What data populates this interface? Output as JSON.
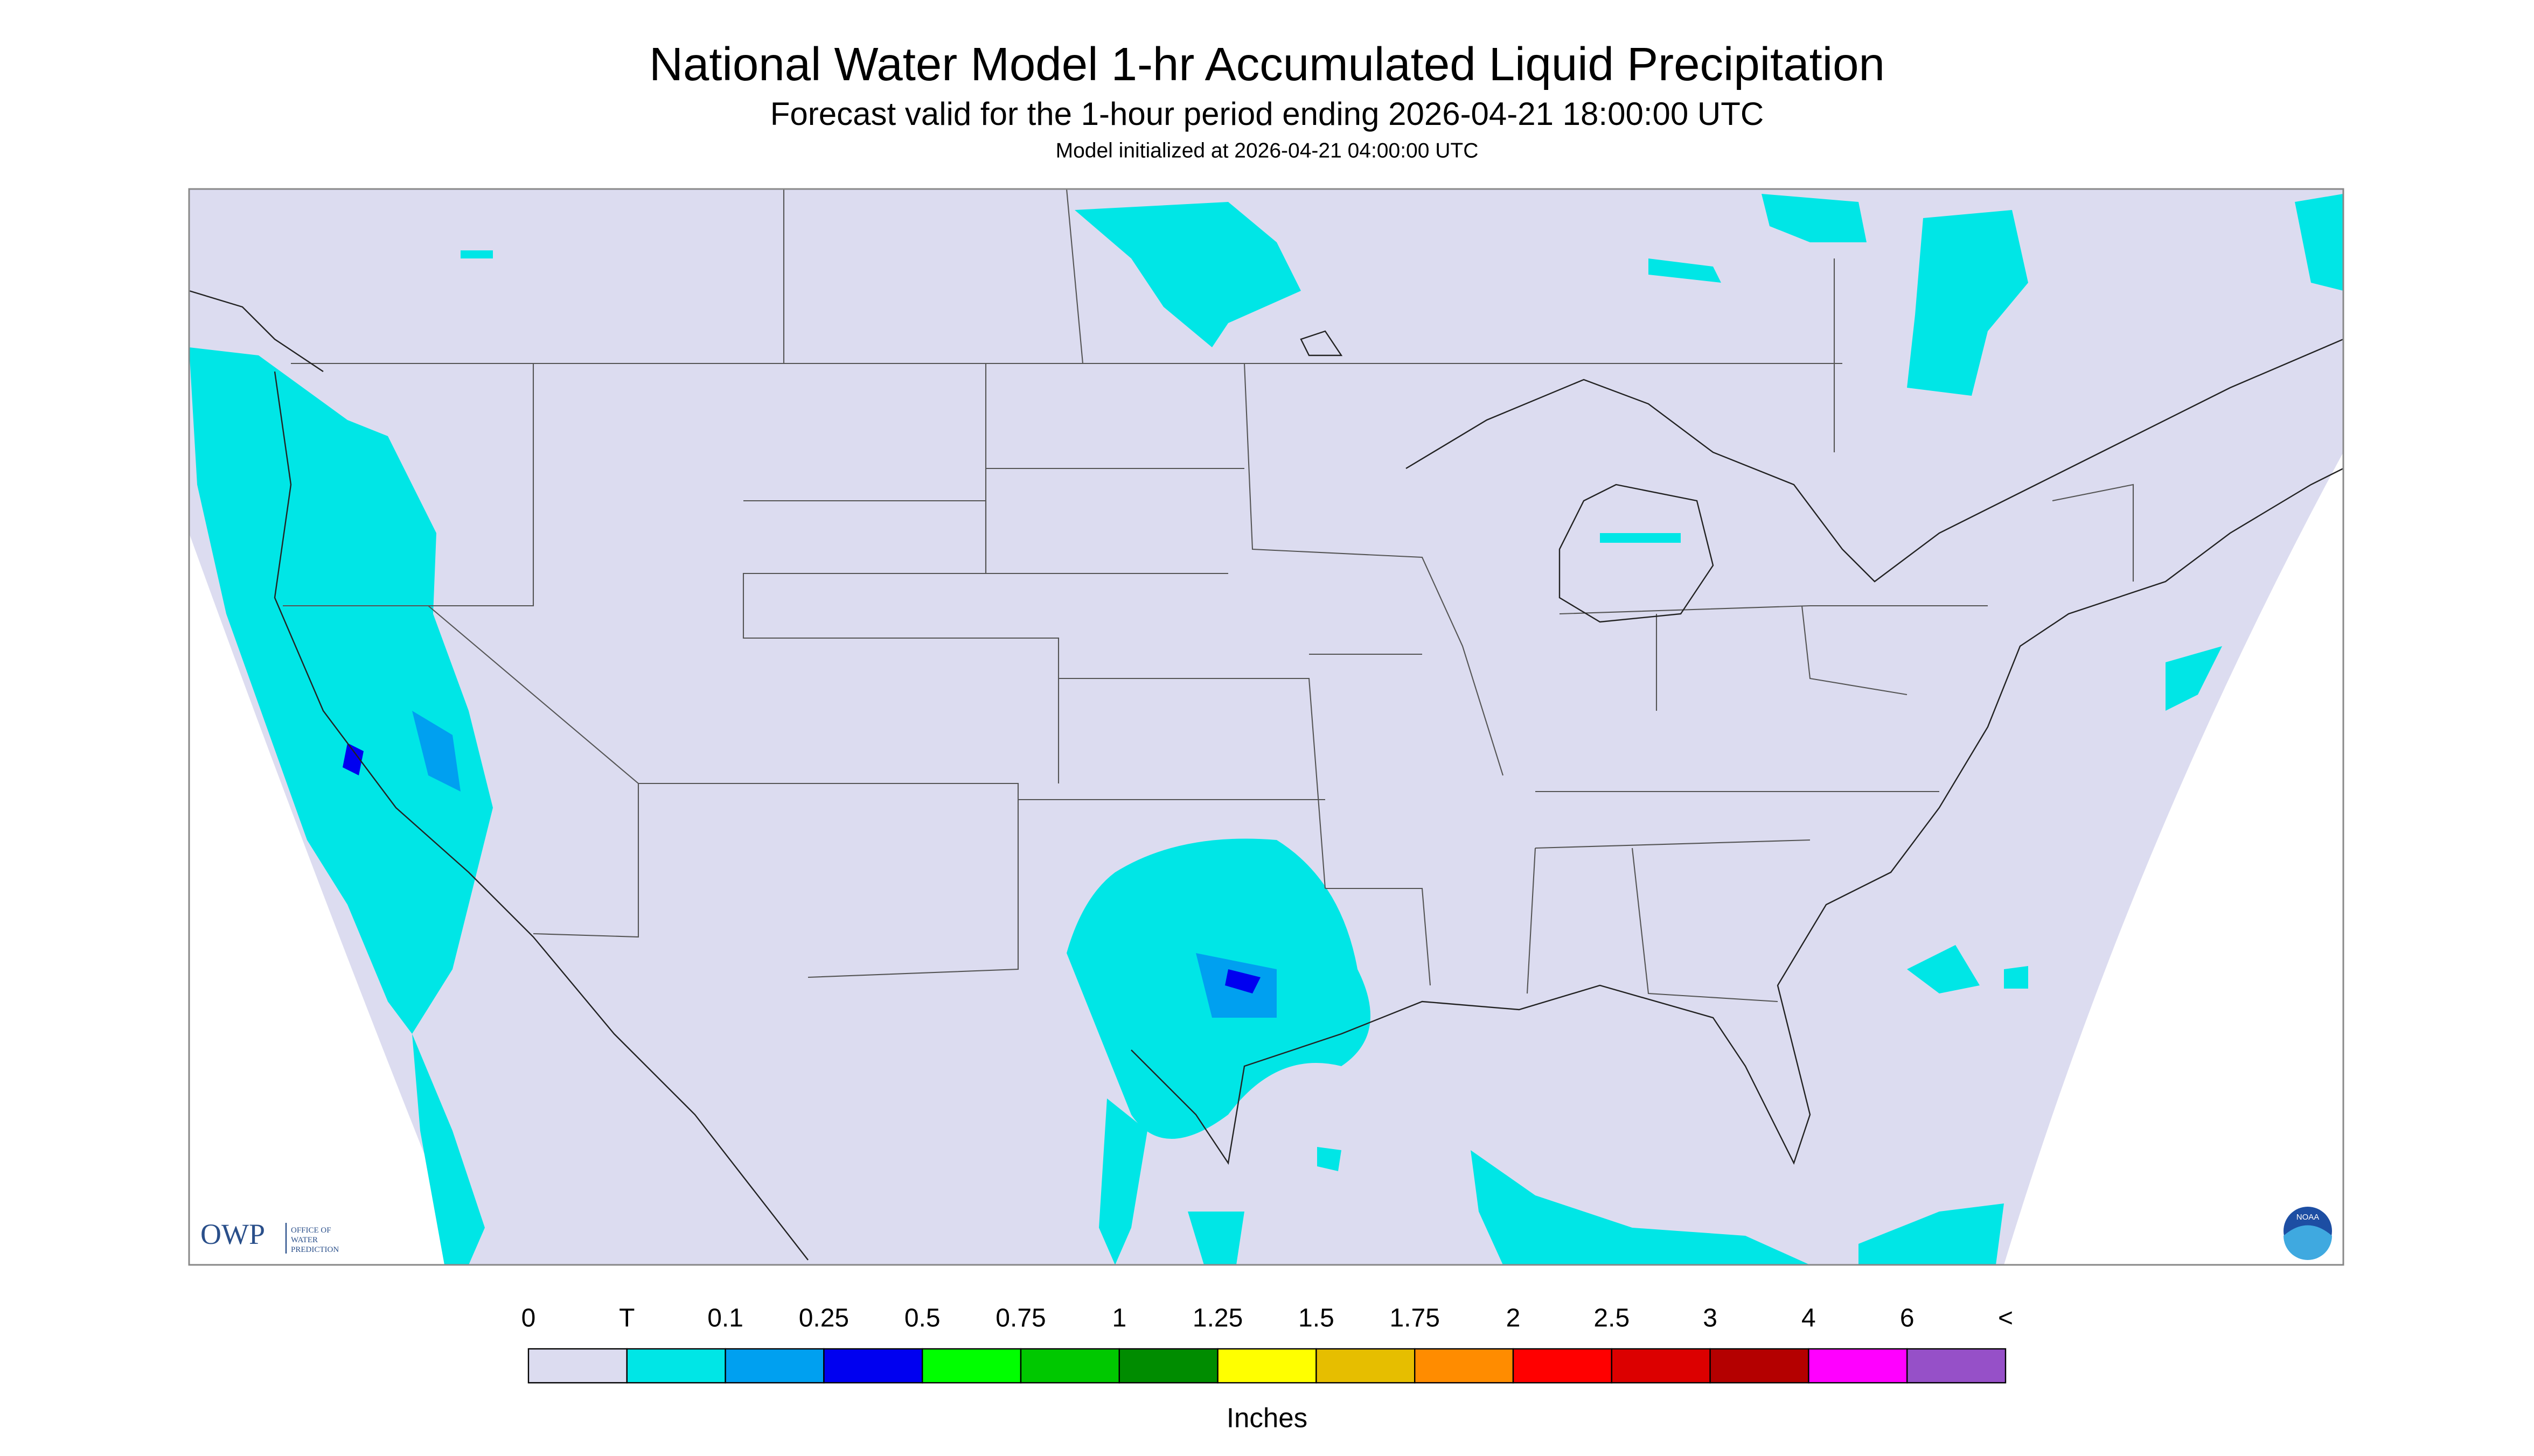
{
  "header": {
    "title": "National Water Model 1-hr Accumulated Liquid Precipitation",
    "subtitle": "Forecast valid for the 1-hour period ending 2026-04-21 18:00:00 UTC",
    "note": "Model initialized at 2026-04-21 04:00:00 UTC"
  },
  "logos": {
    "owp": "OWP",
    "owp_name": [
      "OFFICE OF",
      "WATER",
      "PREDICTION"
    ],
    "noaa": "NOAA"
  },
  "legend": {
    "labels": [
      "0",
      "T",
      "0.1",
      "0.25",
      "0.5",
      "0.75",
      "1",
      "1.25",
      "1.5",
      "1.75",
      "2",
      "2.5",
      "3",
      "4",
      "6",
      "<"
    ],
    "colors": [
      "#dcdcf0",
      "#00e6e6",
      "#00a0f0",
      "#0000f0",
      "#00ff00",
      "#00c800",
      "#008c00",
      "#ffff00",
      "#e6be00",
      "#ff8c00",
      "#ff0000",
      "#dc0000",
      "#b40000",
      "#ff00ff",
      "#9650c8"
    ],
    "unit": "Inches"
  }
}
